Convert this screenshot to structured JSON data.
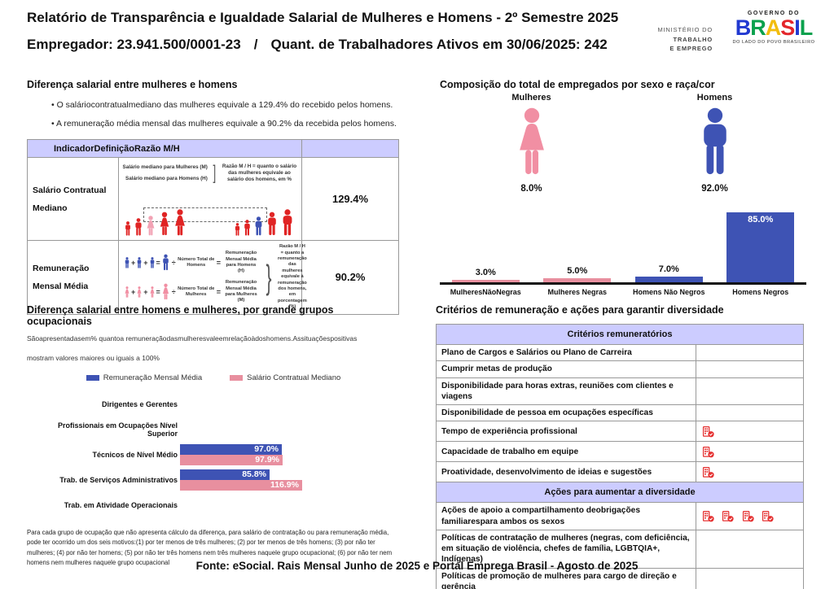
{
  "header": {
    "title": "Relatório de Transparência e Igualdade Salarial de Mulheres e Homens - 2º Semestre 2025",
    "employer": "Empregador: 23.941.500/0001-23",
    "separator": "/",
    "active_workers": "Quant. de Trabalhadores Ativos em 30/06/2025: 242",
    "ministry_lines": [
      "MINISTÉRIO DO",
      "TRABALHO",
      "E EMPREGO"
    ],
    "gov": {
      "top": "GOVERNO DO",
      "brand": "BRASIL",
      "tagline": "DO LADO DO POVO BRASILEIRO"
    }
  },
  "salary_diff": {
    "heading": "Diferença salarial entre mulheres e homens",
    "bullets": [
      "O saláriocontratualmediano das mulheres equivale a 129.4% do recebido pelos homens.",
      "A remuneração média mensal das mulheres equivale a 90.2% da recebida pelos homens."
    ],
    "table_header": "IndicadorDefiniçãoRazão M/H",
    "row1": {
      "indicator": "Salário Contratual Mediano",
      "label_women": "Salário mediano para Mulheres (M)",
      "label_men": "Salário mediano para Homens (H)",
      "bracket": "]",
      "ratio_note": "Razão M / H = quanto o salário das mulheres equivale ao salário dos homens, em %",
      "value": "129.4%"
    },
    "row2": {
      "indicator": "Remuneração Mensal Média",
      "plus": "+",
      "equals": "=",
      "divide": "÷",
      "men_numerator": "Número Total de Homens",
      "men_result": "Remuneração Mensal Média para Homens (H)",
      "women_numerator": "Número Total de Mulheres",
      "women_result": "Remuneração Mensal Média para Mulheres (M)",
      "bracket": "}",
      "ratio_note": "Razão M / H = quanto a remuneração das mulheres equivale à remuneração dos homens, em porcentagem (%)",
      "value": "90.2%"
    }
  },
  "composition": {
    "heading": "Composição do total de empregados por sexo e raça/cor",
    "women_label": "Mulheres",
    "women_pct": "8.0%",
    "men_label": "Homens",
    "men_pct": "92.0%"
  },
  "occupation": {
    "heading": "Diferença salarial entre homens e mulheres, por grande grupos ocupacionais",
    "sub1": "Sãoapresentadasem% quantoa remuneraçãodasmulheresvaleemrelaçãoàdoshomens.Assituaçõespositivas",
    "sub2": "mostram valores maiores ou iguais a 100%",
    "legend": [
      {
        "label": "Remuneração Mensal Média",
        "color": "#3e53b4"
      },
      {
        "label": "Salário Contratual Mediano",
        "color": "#e88f9f"
      }
    ],
    "footnote": "Para cada grupo de ocupação que não apresenta cálculo da diferença, para salário de contratação ou para remuneração média, pode ter ocorrido um dos seis motivos:(1) por ter menos de três mulheres; (2) por ter menos de três homens; (3) por não ter mulheres; (4) por não ter homens; (5) por não ter três homens nem três mulheres naquele grupo ocupacional; (6) por não ter nem homens nem mulheres naquele grupo ocupacional"
  },
  "criteria": {
    "heading": "Critérios de remuneração e ações para garantir diversidade",
    "section1": "Critérios remuneratórios",
    "rows1": [
      {
        "label": "Plano de Cargos e Salários ou Plano de Carreira",
        "icons": 0
      },
      {
        "label": "Cumprir metas de produção",
        "icons": 0
      },
      {
        "label": "Disponibilidade para horas extras, reuniões com clientes e viagens",
        "icons": 0
      },
      {
        "label": "Disponibilidade de pessoa em ocupações específicas",
        "icons": 0
      },
      {
        "label": "Tempo de experiência profissional",
        "icons": 1
      },
      {
        "label": "Capacidade de trabalho em equipe",
        "icons": 1
      },
      {
        "label": "Proatividade, desenvolvimento de ideias e sugestões",
        "icons": 1
      }
    ],
    "section2": "Ações para aumentar a diversidade",
    "rows2": [
      {
        "label": "Ações de apoio a compartilhamento deobrigações familiarespara ambos os sexos",
        "icons": 4
      },
      {
        "label": "Políticas de contratação de mulheres (negras, com deficiência, em situação de violência, chefes de família, LGBTQIA+, Indígenas)",
        "icons": 0
      },
      {
        "label": "Políticas de promoção de mulheres para cargo de direção e gerência",
        "icons": 0
      }
    ]
  },
  "footer": "Fonte: eSocial. Rais Mensal Junho de 2025 e Portal Emprega Brasil - Agosto de 2025",
  "colors": {
    "blue": "#3e53b4",
    "pink": "#e88f9f",
    "pink_icon": "#f18fa3",
    "red": "#e02424",
    "lavender": "#ccccff",
    "icon_red": "#e53030"
  },
  "figures": {
    "row1_left": [
      {
        "shape": "male",
        "color": "#e02424",
        "h": 18
      },
      {
        "shape": "male",
        "color": "#e02424",
        "h": 22
      },
      {
        "shape": "female",
        "color": "#f2a2b4",
        "h": 25
      },
      {
        "shape": "female",
        "color": "#e02424",
        "h": 30
      },
      {
        "shape": "female",
        "color": "#e02424",
        "h": 33
      }
    ],
    "row1_right": [
      {
        "shape": "male",
        "color": "#e02424",
        "h": 16
      },
      {
        "shape": "male",
        "color": "#e02424",
        "h": 20
      },
      {
        "shape": "male",
        "color": "#3e53b4",
        "h": 24
      },
      {
        "shape": "male",
        "color": "#e02424",
        "h": 30
      },
      {
        "shape": "male",
        "color": "#e02424",
        "h": 33
      }
    ],
    "row2_men": [
      {
        "shape": "male",
        "color": "#3e53b4",
        "h": 14
      },
      {
        "shape": "male",
        "color": "#3e53b4",
        "h": 14
      },
      {
        "shape": "male",
        "color": "#3e53b4",
        "h": 14
      },
      {
        "shape": "male",
        "color": "#3e53b4",
        "h": 21
      }
    ],
    "row2_women": [
      {
        "shape": "female",
        "color": "#f18fa3",
        "h": 14
      },
      {
        "shape": "female",
        "color": "#f18fa3",
        "h": 14
      },
      {
        "shape": "female",
        "color": "#f18fa3",
        "h": 14
      },
      {
        "shape": "female",
        "color": "#f18fa3",
        "h": 21
      }
    ]
  },
  "chart_data": [
    {
      "type": "bar",
      "title": "Composição do total de empregados por sexo e raça/cor",
      "categories": [
        "MulheresNãoNegras",
        "Mulheres Negras",
        "Homens Não Negros",
        "Homens Negros"
      ],
      "values": [
        3.0,
        5.0,
        7.0,
        85.0
      ],
      "value_labels": [
        "3.0%",
        "5.0%",
        "7.0%",
        "85.0%"
      ],
      "bar_colors": [
        "#e88f9f",
        "#e88f9f",
        "#3e53b4",
        "#3e53b4"
      ],
      "xlabel": "",
      "ylabel": "",
      "ylim": [
        0,
        100
      ],
      "grid": false,
      "legend_position": "none"
    },
    {
      "type": "bar",
      "orientation": "horizontal",
      "title": "Diferença salarial entre homens e mulheres, por grande grupos ocupacionais",
      "categories": [
        "Dirigentes e Gerentes",
        "Profissionais em Ocupações Nível Superior",
        "Técnicos de Nível Médio",
        "Trab. de Serviços Administrativos",
        "Trab. em Atividade Operacionais"
      ],
      "series": [
        {
          "name": "Remuneração Mensal Média",
          "color": "#3e53b4",
          "values": [
            null,
            null,
            97.0,
            85.8,
            null
          ],
          "labels": [
            null,
            null,
            "97.0%",
            "85.8%",
            null
          ]
        },
        {
          "name": "Salário Contratual Mediano",
          "color": "#e88f9f",
          "values": [
            null,
            null,
            97.9,
            116.9,
            null
          ],
          "labels": [
            null,
            null,
            "97.9%",
            "116.9%",
            null
          ]
        }
      ],
      "xlim": [
        0,
        120
      ],
      "grid": false,
      "legend_position": "top"
    }
  ]
}
